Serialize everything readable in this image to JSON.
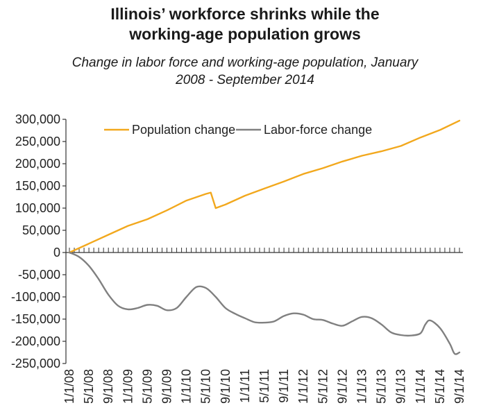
{
  "title_lines": [
    "Illinois’ workforce shrinks while the",
    "working-age population grows"
  ],
  "subtitle_lines": [
    "Change in labor force and working-age population, January",
    "2008 - September 2014"
  ],
  "colors": {
    "population": "#F2A81D",
    "labor": "#808080",
    "axis": "#333333"
  },
  "chart_data": {
    "type": "line",
    "title": "Illinois’ workforce shrinks while the working-age population grows",
    "subtitle": "Change in labor force and working-age population, January 2008 - September 2014",
    "xlabel": "",
    "ylabel": "",
    "ylim": [
      -250000,
      300000
    ],
    "yticks": [
      300000,
      250000,
      200000,
      150000,
      100000,
      50000,
      0,
      -50000,
      -100000,
      -150000,
      -200000,
      -250000
    ],
    "ytick_labels": [
      "300,000",
      "250,000",
      "200,000",
      "150,000",
      "100,000",
      "50,000",
      "0",
      "-50,000",
      "-100,000",
      "-150,000",
      "-200,000",
      "-250,000"
    ],
    "xlim": [
      "2008-01",
      "2014-09"
    ],
    "xtick_labels": [
      "1/1/08",
      "5/1/08",
      "9/1/08",
      "1/1/09",
      "5/1/09",
      "9/1/09",
      "1/1/10",
      "5/1/10",
      "9/1/10",
      "1/1/11",
      "5/1/11",
      "9/1/11",
      "1/1/12",
      "5/1/12",
      "9/1/12",
      "1/1/13",
      "5/1/13",
      "9/1/13",
      "1/1/14",
      "5/1/14",
      "9/1/14"
    ],
    "legend_position": "top",
    "grid": false,
    "series": [
      {
        "name": "Population change",
        "points": [
          [
            "2008-01",
            0
          ],
          [
            "2008-05",
            20000
          ],
          [
            "2008-09",
            40000
          ],
          [
            "2009-01",
            60000
          ],
          [
            "2009-05",
            75000
          ],
          [
            "2009-09",
            95000
          ],
          [
            "2010-01",
            117000
          ],
          [
            "2010-05",
            132000
          ],
          [
            "2010-06",
            135000
          ],
          [
            "2010-07",
            100000
          ],
          [
            "2010-09",
            108000
          ],
          [
            "2011-01",
            128000
          ],
          [
            "2011-05",
            144000
          ],
          [
            "2011-09",
            160000
          ],
          [
            "2012-01",
            177000
          ],
          [
            "2012-05",
            190000
          ],
          [
            "2012-09",
            205000
          ],
          [
            "2013-01",
            218000
          ],
          [
            "2013-05",
            228000
          ],
          [
            "2013-09",
            240000
          ],
          [
            "2014-01",
            259000
          ],
          [
            "2014-05",
            276000
          ],
          [
            "2014-09",
            297000
          ]
        ]
      },
      {
        "name": "Labor-force change",
        "points": [
          [
            "2008-01",
            0
          ],
          [
            "2008-03",
            -10000
          ],
          [
            "2008-05",
            -30000
          ],
          [
            "2008-07",
            -60000
          ],
          [
            "2008-09",
            -95000
          ],
          [
            "2008-11",
            -120000
          ],
          [
            "2009-01",
            -128000
          ],
          [
            "2009-03",
            -125000
          ],
          [
            "2009-05",
            -118000
          ],
          [
            "2009-07",
            -120000
          ],
          [
            "2009-09",
            -130000
          ],
          [
            "2009-11",
            -125000
          ],
          [
            "2010-01",
            -100000
          ],
          [
            "2010-03",
            -78000
          ],
          [
            "2010-05",
            -80000
          ],
          [
            "2010-07",
            -100000
          ],
          [
            "2010-09",
            -125000
          ],
          [
            "2010-11",
            -138000
          ],
          [
            "2011-01",
            -148000
          ],
          [
            "2011-03",
            -157000
          ],
          [
            "2011-05",
            -158000
          ],
          [
            "2011-07",
            -155000
          ],
          [
            "2011-09",
            -143000
          ],
          [
            "2011-11",
            -137000
          ],
          [
            "2012-01",
            -140000
          ],
          [
            "2012-03",
            -150000
          ],
          [
            "2012-05",
            -152000
          ],
          [
            "2012-07",
            -160000
          ],
          [
            "2012-09",
            -165000
          ],
          [
            "2012-11",
            -155000
          ],
          [
            "2013-01",
            -145000
          ],
          [
            "2013-03",
            -148000
          ],
          [
            "2013-05",
            -162000
          ],
          [
            "2013-07",
            -180000
          ],
          [
            "2013-09",
            -186000
          ],
          [
            "2013-11",
            -187000
          ],
          [
            "2014-01",
            -182000
          ],
          [
            "2014-02",
            -162000
          ],
          [
            "2014-03",
            -153000
          ],
          [
            "2014-05",
            -170000
          ],
          [
            "2014-07",
            -205000
          ],
          [
            "2014-08",
            -228000
          ],
          [
            "2014-09",
            -225000
          ]
        ]
      }
    ]
  }
}
